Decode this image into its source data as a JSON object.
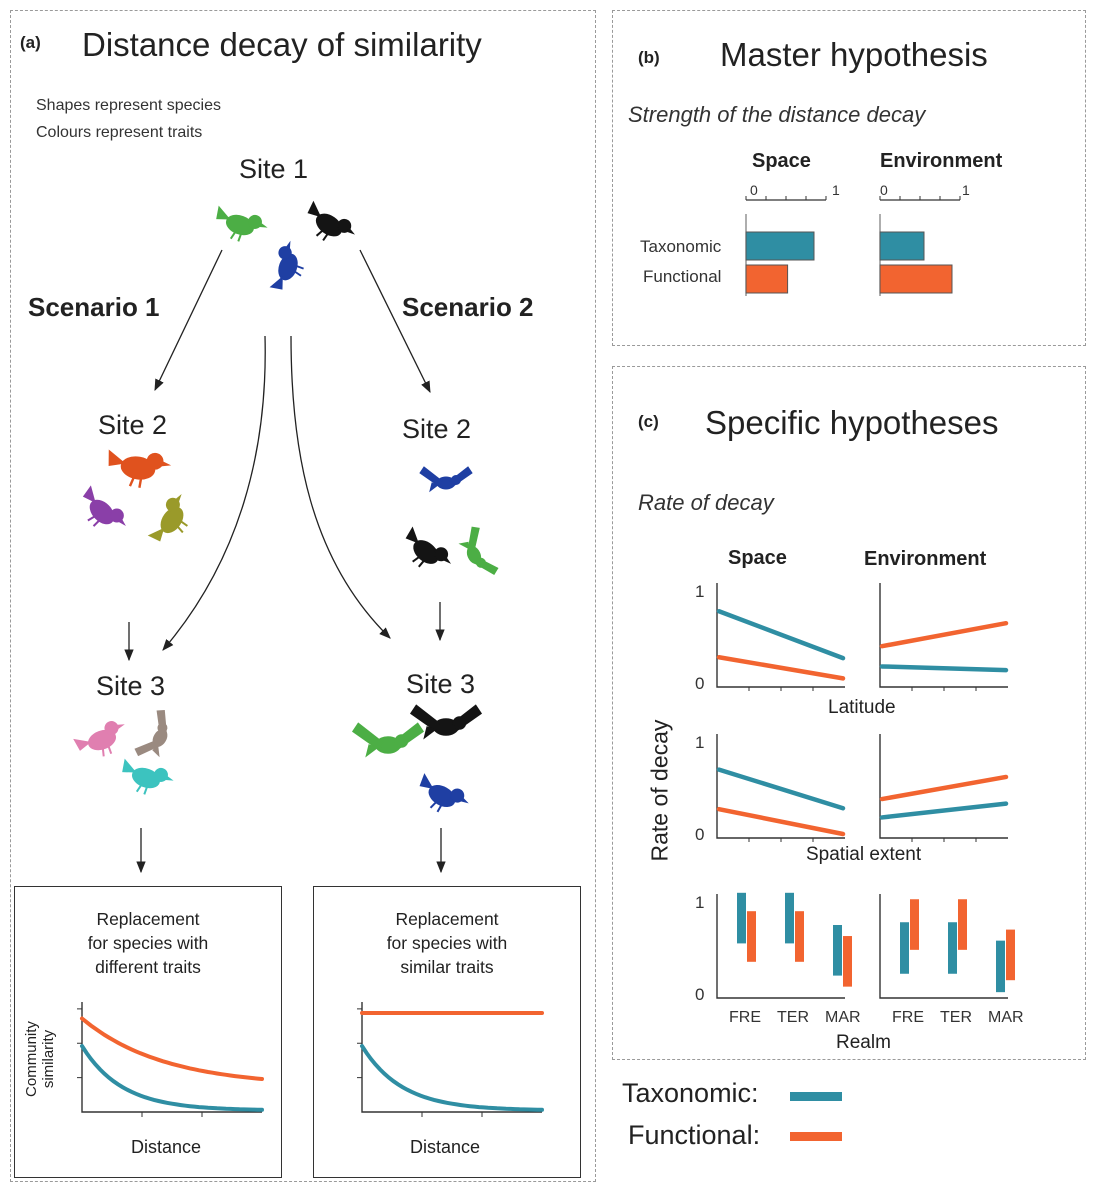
{
  "colors": {
    "taxonomic": "#2f8ea3",
    "functional": "#f26430",
    "green": "#4cae45",
    "blue": "#1f3fa3",
    "black": "#141414",
    "orange": "#e0521e",
    "purple": "#8a3fa8",
    "olive": "#9a9a2a",
    "pink": "#e07fb0",
    "taupe": "#9a8a80",
    "teal": "#3cc3bf"
  },
  "panel_a": {
    "label": "(a)",
    "title": "Distance decay of similarity",
    "note1": "Shapes represent species",
    "note2": "Colours represent traits",
    "site1": "Site 1",
    "scenario1": "Scenario 1",
    "scenario2": "Scenario 2",
    "site2_left": "Site 2",
    "site2_right": "Site 2",
    "site3_left": "Site 3",
    "site3_right": "Site 3",
    "box_left": {
      "title_line1": "Replacement",
      "title_line2": "for species with",
      "title_line3": "different traits",
      "ylabel_line1": "Community",
      "ylabel_line2": "similarity",
      "xlabel": "Distance"
    },
    "box_right": {
      "title_line1": "Replacement",
      "title_line2": "for species with",
      "title_line3": "similar traits",
      "xlabel": "Distance"
    }
  },
  "panel_b": {
    "label": "(b)",
    "title": "Master hypothesis",
    "subtitle": "Strength of the distance decay",
    "space_header": "Space",
    "env_header": "Environment",
    "tick0": "0",
    "tick1": "1",
    "row_taxonomic": "Taxonomic",
    "row_functional": "Functional"
  },
  "panel_c": {
    "label": "(c)",
    "title": "Specific hypotheses",
    "subtitle": "Rate of decay",
    "space_header": "Space",
    "env_header": "Environment",
    "ylabel": "Rate of decay",
    "xlabel_row1": "Latitude",
    "xlabel_row2": "Spatial extent",
    "xlabel_row3": "Realm",
    "tick_1": "1",
    "tick_0": "0",
    "realms": [
      "FRE",
      "TER",
      "MAR"
    ]
  },
  "legend": {
    "taxonomic": "Taxonomic:",
    "functional": "Functional:"
  },
  "chart_data": [
    {
      "type": "line",
      "title": "Replacement for species with different traits",
      "xlabel": "Distance",
      "ylabel": "Community similarity",
      "series": [
        {
          "name": "Functional",
          "shape": "exponential decay",
          "start": 0.85,
          "end": 0.3
        },
        {
          "name": "Taxonomic",
          "shape": "exponential decay",
          "start": 0.6,
          "end": 0.02
        }
      ]
    },
    {
      "type": "line",
      "title": "Replacement for species with similar traits",
      "xlabel": "Distance",
      "series": [
        {
          "name": "Functional",
          "shape": "constant",
          "start": 0.9,
          "end": 0.9
        },
        {
          "name": "Taxonomic",
          "shape": "exponential decay",
          "start": 0.6,
          "end": 0.02
        }
      ]
    },
    {
      "type": "bar",
      "title": "Strength of the distance decay",
      "categories": [
        "Taxonomic",
        "Functional"
      ],
      "series": [
        {
          "name": "Space",
          "values": [
            0.85,
            0.52
          ]
        },
        {
          "name": "Environment",
          "values": [
            0.55,
            0.9
          ]
        }
      ],
      "xlim": [
        0,
        1
      ]
    },
    {
      "type": "line",
      "title": "Rate of decay vs Latitude",
      "ylim": [
        0,
        1
      ],
      "panels": [
        {
          "name": "Space",
          "series": [
            {
              "name": "Taxonomic",
              "x": [
                0,
                1
              ],
              "y": [
                0.78,
                0.27
              ]
            },
            {
              "name": "Functional",
              "x": [
                0,
                1
              ],
              "y": [
                0.28,
                0.05
              ]
            }
          ]
        },
        {
          "name": "Environment",
          "series": [
            {
              "name": "Functional",
              "x": [
                0,
                1
              ],
              "y": [
                0.4,
                0.65
              ]
            },
            {
              "name": "Taxonomic",
              "x": [
                0,
                1
              ],
              "y": [
                0.18,
                0.14
              ]
            }
          ]
        }
      ]
    },
    {
      "type": "line",
      "title": "Rate of decay vs Spatial extent",
      "ylim": [
        0,
        1
      ],
      "panels": [
        {
          "name": "Space",
          "series": [
            {
              "name": "Taxonomic",
              "x": [
                0,
                1
              ],
              "y": [
                0.7,
                0.28
              ]
            },
            {
              "name": "Functional",
              "x": [
                0,
                1
              ],
              "y": [
                0.27,
                0.0
              ]
            }
          ]
        },
        {
          "name": "Environment",
          "series": [
            {
              "name": "Functional",
              "x": [
                0,
                1
              ],
              "y": [
                0.38,
                0.62
              ]
            },
            {
              "name": "Taxonomic",
              "x": [
                0,
                1
              ],
              "y": [
                0.18,
                0.33
              ]
            }
          ]
        }
      ]
    },
    {
      "type": "bar",
      "title": "Rate of decay by Realm (floating ranges)",
      "categories": [
        "FRE",
        "TER",
        "MAR"
      ],
      "ylim": [
        0,
        1
      ],
      "panels": [
        {
          "name": "Space",
          "series": [
            {
              "name": "Taxonomic",
              "ranges": [
                [
                  0.55,
                  1.1
                ],
                [
                  0.55,
                  1.1
                ],
                [
                  0.2,
                  0.75
                ]
              ]
            },
            {
              "name": "Functional",
              "ranges": [
                [
                  0.35,
                  0.9
                ],
                [
                  0.35,
                  0.9
                ],
                [
                  0.08,
                  0.63
                ]
              ]
            }
          ]
        },
        {
          "name": "Environment",
          "series": [
            {
              "name": "Taxonomic",
              "ranges": [
                [
                  0.22,
                  0.78
                ],
                [
                  0.22,
                  0.78
                ],
                [
                  0.02,
                  0.58
                ]
              ]
            },
            {
              "name": "Functional",
              "ranges": [
                [
                  0.48,
                  1.03
                ],
                [
                  0.48,
                  1.03
                ],
                [
                  0.15,
                  0.7
                ]
              ]
            }
          ]
        }
      ]
    }
  ]
}
